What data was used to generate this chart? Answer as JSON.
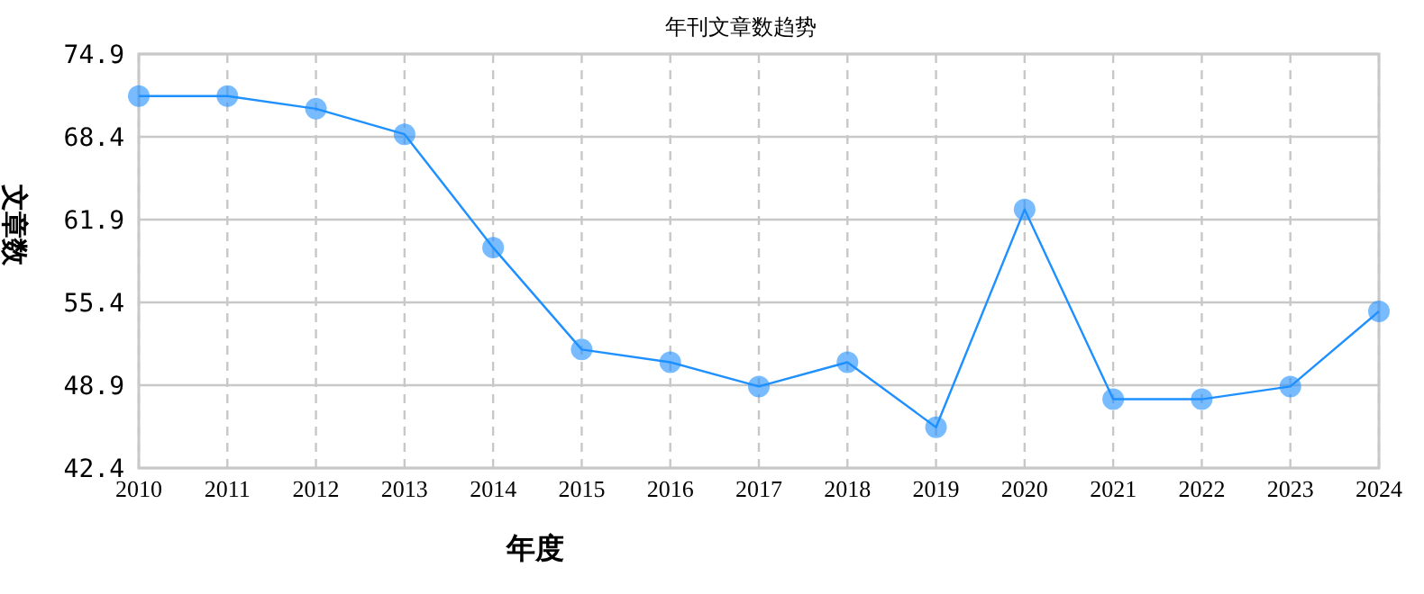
{
  "chart_data": {
    "type": "line",
    "title": "年刊文章数趋势",
    "xlabel": "年度",
    "ylabel": "文章数",
    "categories": [
      "2010",
      "2011",
      "2012",
      "2013",
      "2014",
      "2015",
      "2016",
      "2017",
      "2018",
      "2019",
      "2020",
      "2021",
      "2022",
      "2023",
      "2024"
    ],
    "series": [
      {
        "color": "#1e90ff",
        "values": [
          71.6,
          71.6,
          70.6,
          68.6,
          59.7,
          51.7,
          50.7,
          48.8,
          50.7,
          45.6,
          62.7,
          47.8,
          47.8,
          48.8,
          54.7
        ]
      }
    ],
    "ylim": [
      42.4,
      74.9
    ],
    "yticks": [
      42.4,
      48.9,
      55.4,
      61.9,
      68.4,
      74.9
    ],
    "grid": true,
    "marker": "circle",
    "line_style": "solid"
  }
}
